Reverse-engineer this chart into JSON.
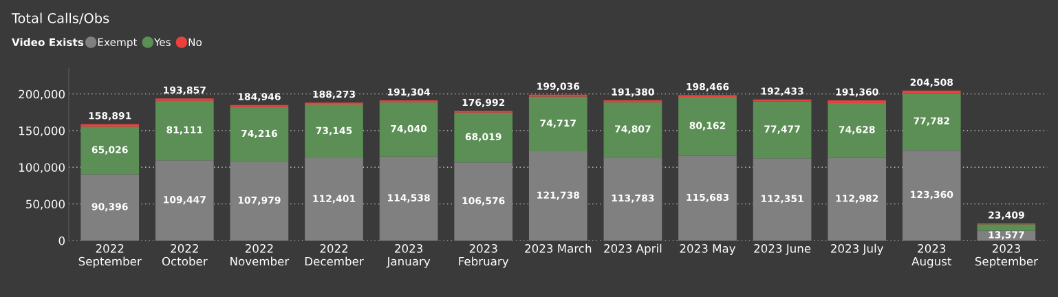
{
  "chart_data": {
    "type": "bar",
    "title": "Total Calls/Obs",
    "legend_title": "Video Exists",
    "stacked": true,
    "legend": "top left",
    "grid": "y",
    "categories": [
      "2022\nSeptember",
      "2022\nOctober",
      "2022\nNovember",
      "2022\nDecember",
      "2023\nJanuary",
      "2023\nFebruary",
      "2023 March",
      "2023 April",
      "2023 May",
      "2023 June",
      "2023 July",
      "2023\nAugust",
      "2023\nSeptember"
    ],
    "series": [
      {
        "name": "Exempt",
        "color": "#808080",
        "values": [
          90396,
          109447,
          107979,
          112401,
          114538,
          106576,
          121738,
          113783,
          115683,
          112351,
          112982,
          123360,
          13577
        ],
        "value_labels": [
          "90,396",
          "109,447",
          "107,979",
          "112,401",
          "114,538",
          "106,576",
          "121,738",
          "113,783",
          "115,683",
          "112,351",
          "112,982",
          "123,360",
          "13,577"
        ]
      },
      {
        "name": "Yes",
        "color": "#5b8f55",
        "values": [
          65026,
          81111,
          74216,
          73145,
          74040,
          68019,
          74717,
          74807,
          80162,
          77477,
          74628,
          77782,
          8532
        ],
        "value_labels": [
          "65,026",
          "81,111",
          "74,216",
          "73,145",
          "74,040",
          "68,019",
          "74,717",
          "74,807",
          "80,162",
          "77,477",
          "74,628",
          "77,782",
          null
        ]
      },
      {
        "name": "No",
        "color": "#e8423f",
        "values": [
          3469,
          3299,
          2751,
          2727,
          2726,
          2397,
          2581,
          2790,
          2621,
          2605,
          3750,
          3366,
          1300
        ]
      }
    ],
    "totals": [
      "158,891",
      "193,857",
      "184,946",
      "188,273",
      "191,304",
      "176,992",
      "199,036",
      "191,380",
      "198,466",
      "192,433",
      "191,360",
      "204,508",
      "23,409"
    ],
    "ylim": [
      0,
      235000
    ],
    "yticks": [
      {
        "value": 0,
        "label": "0"
      },
      {
        "value": 50000,
        "label": "50,000"
      },
      {
        "value": 100000,
        "label": "100,000"
      },
      {
        "value": 150000,
        "label": "150,000"
      },
      {
        "value": 200000,
        "label": "200,000"
      }
    ]
  }
}
